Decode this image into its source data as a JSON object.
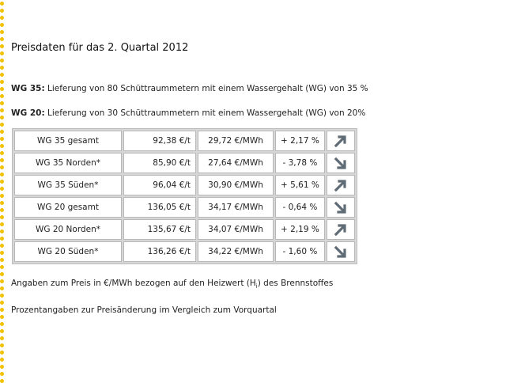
{
  "title": "Preisdaten für das 2. Quartal 2012",
  "definitions": [
    {
      "key": "WG 35:",
      "text": " Lieferung von 80 Schüttraummetern mit einem Wassergehalt (WG) von 35 %"
    },
    {
      "key": "WG 20:",
      "text": " Lieferung von 30 Schüttraummetern mit einem Wassergehalt (WG) von 20%"
    }
  ],
  "table": {
    "rows": [
      {
        "name": "WG 35 gesamt",
        "price_t": "92,38 €/t",
        "price_mwh": "29,72 €/MWh",
        "change": "+ 2,17 %",
        "trend": "up",
        "trend_icon": "arrow-up-right-icon"
      },
      {
        "name": "WG 35 Norden*",
        "price_t": "85,90 €/t",
        "price_mwh": "27,64 €/MWh",
        "change": "- 3,78 %",
        "trend": "down",
        "trend_icon": "arrow-down-right-icon"
      },
      {
        "name": "WG 35 Süden*",
        "price_t": "96,04 €/t",
        "price_mwh": "30,90 €/MWh",
        "change": "+ 5,61 %",
        "trend": "up",
        "trend_icon": "arrow-up-right-icon"
      },
      {
        "name": "WG 20 gesamt",
        "price_t": "136,05 €/t",
        "price_mwh": "34,17 €/MWh",
        "change": "- 0,64 %",
        "trend": "down",
        "trend_icon": "arrow-down-right-icon"
      },
      {
        "name": "WG 20 Norden*",
        "price_t": "135,67 €/t",
        "price_mwh": "34,07 €/MWh",
        "change": "+ 2,19 %",
        "trend": "up",
        "trend_icon": "arrow-up-right-icon"
      },
      {
        "name": "WG 20 Süden*",
        "price_t": "136,26 €/t",
        "price_mwh": "34,22 €/MWh",
        "change": "- 1,60 %",
        "trend": "down",
        "trend_icon": "arrow-down-right-icon"
      }
    ]
  },
  "notes": {
    "note1_pre": "Angaben zum Preis in €/MWh bezogen auf den Heizwert (H",
    "note1_sub": "i",
    "note1_post": ") des Brennstoffes",
    "note2": "Prozentangaben zur Preisänderung im Vergleich zum Vorquartal"
  },
  "colors": {
    "dot_border": "#f2c200",
    "arrow": "#5f6b75"
  }
}
